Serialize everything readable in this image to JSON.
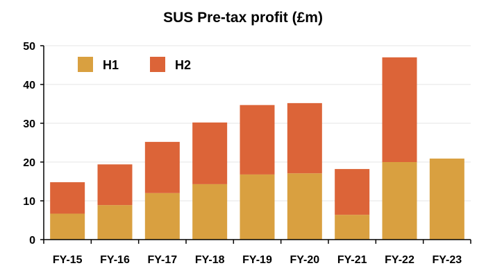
{
  "chart_data": {
    "type": "bar",
    "stacked": true,
    "title": "SUS Pre-tax profit (£m)",
    "xlabel": "",
    "ylabel": "",
    "categories": [
      "FY-15",
      "FY-16",
      "FY-17",
      "FY-18",
      "FY-19",
      "FY-20",
      "FY-21",
      "FY-22",
      "FY-23"
    ],
    "series": [
      {
        "name": "H1",
        "color": "#d9a040",
        "values": [
          6.7,
          8.9,
          12.0,
          14.3,
          16.8,
          17.1,
          6.4,
          20.0,
          20.9
        ]
      },
      {
        "name": "H2",
        "color": "#dc6438",
        "values": [
          8.1,
          10.5,
          13.2,
          15.9,
          17.9,
          18.1,
          11.8,
          27.0,
          0
        ]
      }
    ],
    "ylim": [
      0,
      50
    ],
    "yticks": [
      0,
      10,
      20,
      30,
      40,
      50
    ],
    "grid": true,
    "legend_position": "top-left"
  }
}
